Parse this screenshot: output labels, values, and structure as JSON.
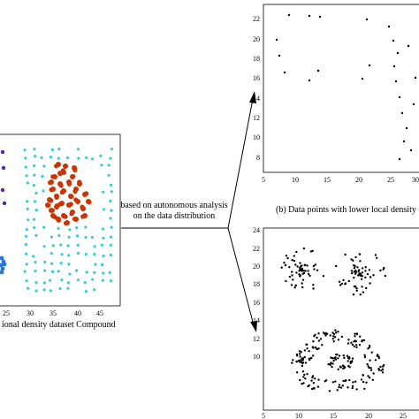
{
  "left_panel": {
    "caption": "ional density dataset Compound",
    "x_ticks": [
      "25",
      "30",
      "35",
      "40",
      "45"
    ],
    "colors": {
      "cyan": "#33ccdd",
      "red": "#cc3300",
      "purple": "#5522aa",
      "blue": "#2277dd"
    }
  },
  "middle_text": {
    "line1": "based on autonomous analysis",
    "line2": "on the data distribution"
  },
  "top_right_panel": {
    "caption": "(b) Data points with lower local density (L",
    "y_ticks": [
      "22",
      "20",
      "18",
      "16",
      "14",
      "12",
      "10",
      "8"
    ],
    "x_ticks": [
      "5",
      "10",
      "15",
      "20",
      "25",
      "30"
    ]
  },
  "bottom_right_panel": {
    "y_ticks": [
      "24",
      "22",
      "20",
      "18",
      "16",
      "14",
      "12",
      "10"
    ],
    "x_ticks": [
      "5",
      "10",
      "15",
      "20",
      "25"
    ]
  }
}
